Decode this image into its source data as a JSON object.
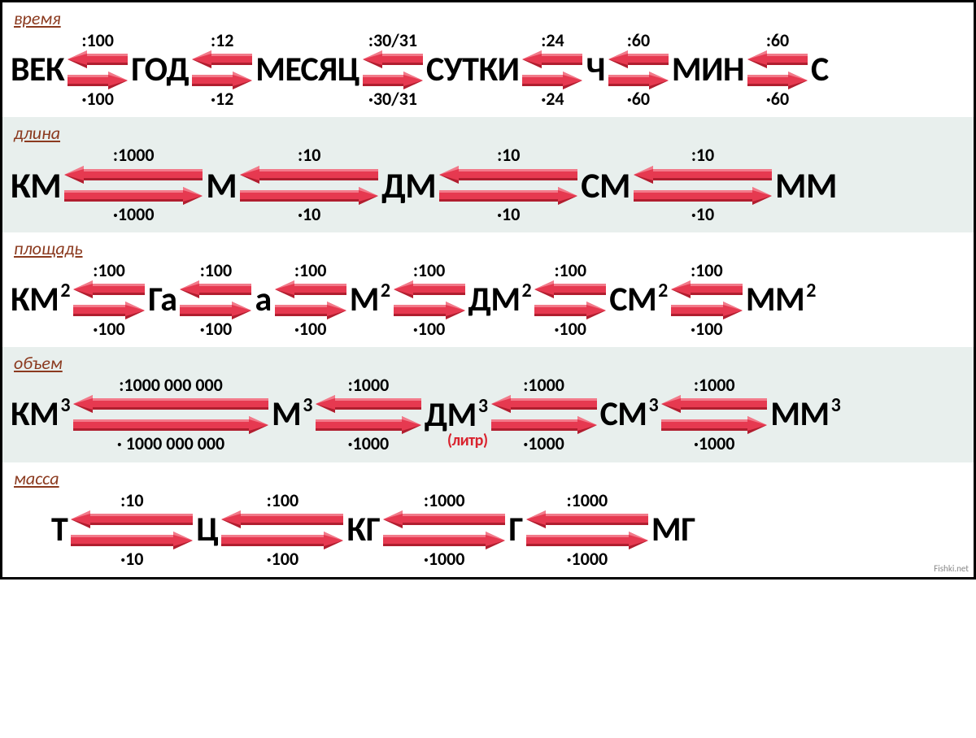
{
  "colors": {
    "arrow_fill": "#e63950",
    "arrow_top": "#f27a8a",
    "arrow_dark": "#b01e2f",
    "title": "#8b3a1f",
    "text": "#000000",
    "bg_alt": "#e8efed",
    "litre": "#d9232e"
  },
  "watermark": "Fishki.net",
  "sections": [
    {
      "id": "time",
      "title": "время",
      "bg": "#ffffff",
      "unit_fs": 42,
      "arrow_w": 74,
      "units": [
        "ВЕК",
        "ГОД",
        "МЕСЯЦ",
        "СУТКИ",
        "Ч",
        "МИН",
        "С"
      ],
      "exps": [
        "",
        "",
        "",
        "",
        "",
        "",
        ""
      ],
      "subs": [
        "",
        "",
        "",
        "",
        "",
        "",
        ""
      ],
      "factors_up": [
        ":100",
        ":12",
        ":30/31",
        ":24",
        ":60",
        ":60"
      ],
      "factors_dn": [
        "·100",
        "·12",
        "·30/31",
        "·24",
        "·60",
        "·60"
      ]
    },
    {
      "id": "length",
      "title": "длина",
      "bg": "alt",
      "unit_fs": 44,
      "arrow_w": 170,
      "units": [
        "КМ",
        "М",
        "ДМ",
        "СМ",
        "ММ"
      ],
      "exps": [
        "",
        "",
        "",
        "",
        ""
      ],
      "subs": [
        "",
        "",
        "",
        "",
        ""
      ],
      "factors_up": [
        ":1000",
        ":10",
        ":10",
        ":10"
      ],
      "factors_dn": [
        "·1000",
        "·10",
        "·10",
        "·10"
      ]
    },
    {
      "id": "area",
      "title": "площадь",
      "bg": "#ffffff",
      "unit_fs": 42,
      "arrow_w": 88,
      "units": [
        "КМ",
        "Га",
        "а",
        "М",
        "ДМ",
        "СМ",
        "ММ"
      ],
      "exps": [
        "2",
        "",
        "",
        "2",
        "2",
        "2",
        "2"
      ],
      "subs": [
        "",
        "",
        "",
        "",
        "",
        "",
        ""
      ],
      "factors_up": [
        ":100",
        ":100",
        ":100",
        ":100",
        ":100",
        ":100"
      ],
      "factors_dn": [
        "·100",
        "·100",
        "·100",
        "·100",
        "·100",
        "·100"
      ]
    },
    {
      "id": "volume",
      "title": "объем",
      "bg": "alt",
      "unit_fs": 42,
      "arrow_w": 130,
      "arrow_w_first": 240,
      "units": [
        "КМ",
        "М",
        "ДМ",
        "СМ",
        "ММ"
      ],
      "exps": [
        "3",
        "3",
        "3",
        "3",
        "3"
      ],
      "subs": [
        "",
        "",
        "(литр)",
        "",
        ""
      ],
      "factors_up": [
        ":1000 000 000",
        ":1000",
        ":1000",
        ":1000"
      ],
      "factors_dn": [
        "· 1000 000 000",
        "·1000",
        "·1000",
        "·1000"
      ]
    },
    {
      "id": "mass",
      "title": "масса",
      "bg": "#ffffff",
      "unit_fs": 42,
      "arrow_w": 150,
      "units": [
        "Т",
        "Ц",
        "КГ",
        "Г",
        "МГ"
      ],
      "exps": [
        "",
        "",
        "",
        "",
        ""
      ],
      "subs": [
        "",
        "",
        "",
        "",
        ""
      ],
      "factors_up": [
        ":10",
        ":100",
        ":1000",
        ":1000"
      ],
      "factors_dn": [
        "·10",
        "·100",
        "·1000",
        "·1000"
      ]
    }
  ]
}
